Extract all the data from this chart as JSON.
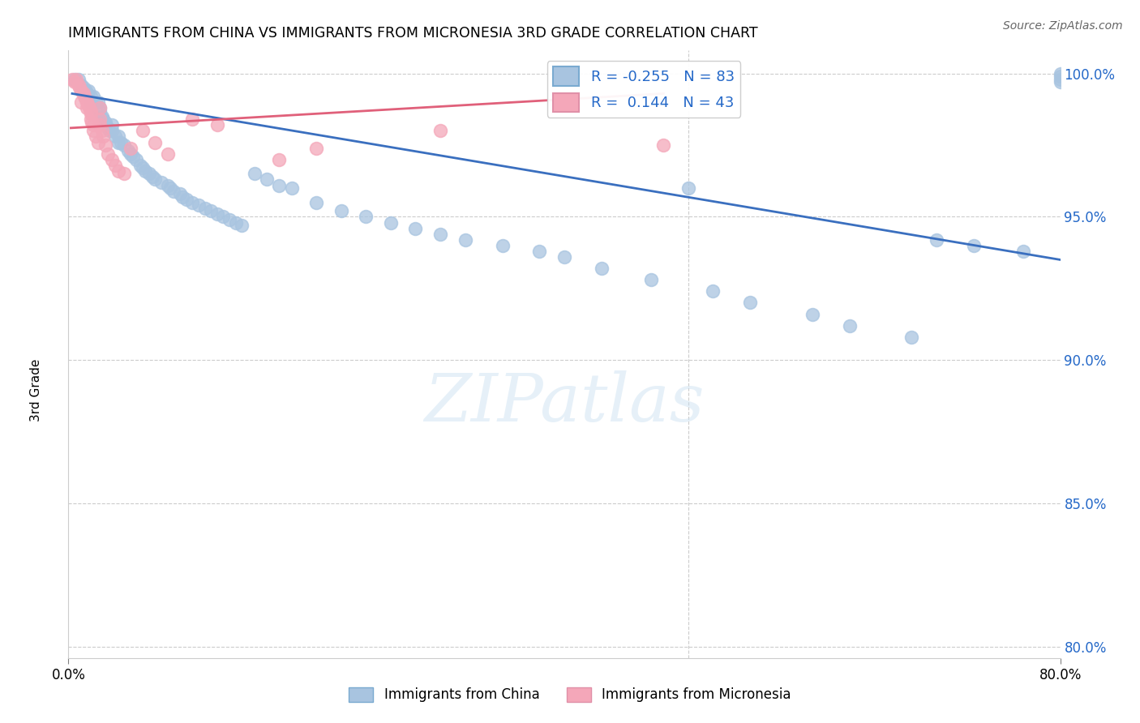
{
  "title": "IMMIGRANTS FROM CHINA VS IMMIGRANTS FROM MICRONESIA 3RD GRADE CORRELATION CHART",
  "source": "Source: ZipAtlas.com",
  "ylabel": "3rd Grade",
  "xlim": [
    0.0,
    0.8
  ],
  "ylim": [
    0.796,
    1.008
  ],
  "yticks": [
    0.8,
    0.85,
    0.9,
    0.95,
    1.0
  ],
  "ytick_labels": [
    "80.0%",
    "85.0%",
    "90.0%",
    "95.0%",
    "100.0%"
  ],
  "china_R": -0.255,
  "china_N": 83,
  "micronesia_R": 0.144,
  "micronesia_N": 43,
  "china_color": "#a8c4e0",
  "micronesia_color": "#f4a7b9",
  "china_line_color": "#3a6fbf",
  "micronesia_line_color": "#e0607a",
  "watermark": "ZIPatlas",
  "china_x": [
    0.005,
    0.008,
    0.01,
    0.012,
    0.014,
    0.015,
    0.016,
    0.018,
    0.018,
    0.02,
    0.02,
    0.022,
    0.024,
    0.025,
    0.025,
    0.027,
    0.028,
    0.03,
    0.03,
    0.032,
    0.033,
    0.035,
    0.035,
    0.038,
    0.04,
    0.04,
    0.042,
    0.045,
    0.048,
    0.05,
    0.052,
    0.055,
    0.058,
    0.06,
    0.062,
    0.065,
    0.068,
    0.07,
    0.075,
    0.08,
    0.082,
    0.085,
    0.09,
    0.092,
    0.095,
    0.1,
    0.105,
    0.11,
    0.115,
    0.12,
    0.125,
    0.13,
    0.135,
    0.14,
    0.15,
    0.16,
    0.17,
    0.18,
    0.2,
    0.22,
    0.24,
    0.26,
    0.28,
    0.3,
    0.32,
    0.35,
    0.38,
    0.4,
    0.43,
    0.47,
    0.5,
    0.52,
    0.55,
    0.6,
    0.63,
    0.68,
    0.7,
    0.73,
    0.77,
    0.8,
    0.8,
    0.8,
    0.8
  ],
  "china_y": [
    0.998,
    0.998,
    0.996,
    0.995,
    0.994,
    0.993,
    0.994,
    0.992,
    0.99,
    0.99,
    0.992,
    0.99,
    0.99,
    0.988,
    0.987,
    0.985,
    0.984,
    0.983,
    0.982,
    0.981,
    0.98,
    0.98,
    0.982,
    0.978,
    0.978,
    0.976,
    0.976,
    0.975,
    0.973,
    0.972,
    0.971,
    0.97,
    0.968,
    0.967,
    0.966,
    0.965,
    0.964,
    0.963,
    0.962,
    0.961,
    0.96,
    0.959,
    0.958,
    0.957,
    0.956,
    0.955,
    0.954,
    0.953,
    0.952,
    0.951,
    0.95,
    0.949,
    0.948,
    0.947,
    0.965,
    0.963,
    0.961,
    0.96,
    0.955,
    0.952,
    0.95,
    0.948,
    0.946,
    0.944,
    0.942,
    0.94,
    0.938,
    0.936,
    0.932,
    0.928,
    0.96,
    0.924,
    0.92,
    0.916,
    0.912,
    0.908,
    0.942,
    0.94,
    0.938,
    1.0,
    0.999,
    0.998,
    0.997
  ],
  "micronesia_x": [
    0.003,
    0.005,
    0.006,
    0.008,
    0.009,
    0.01,
    0.01,
    0.012,
    0.013,
    0.014,
    0.015,
    0.015,
    0.016,
    0.017,
    0.018,
    0.018,
    0.018,
    0.019,
    0.02,
    0.02,
    0.022,
    0.024,
    0.025,
    0.025,
    0.025,
    0.027,
    0.028,
    0.03,
    0.032,
    0.035,
    0.038,
    0.04,
    0.045,
    0.05,
    0.06,
    0.07,
    0.08,
    0.1,
    0.12,
    0.17,
    0.2,
    0.3,
    0.48
  ],
  "micronesia_y": [
    0.998,
    0.997,
    0.998,
    0.996,
    0.995,
    0.994,
    0.99,
    0.993,
    0.992,
    0.991,
    0.99,
    0.988,
    0.989,
    0.988,
    0.987,
    0.986,
    0.984,
    0.983,
    0.982,
    0.98,
    0.978,
    0.976,
    0.988,
    0.984,
    0.982,
    0.98,
    0.978,
    0.975,
    0.972,
    0.97,
    0.968,
    0.966,
    0.965,
    0.974,
    0.98,
    0.976,
    0.972,
    0.984,
    0.982,
    0.97,
    0.974,
    0.98,
    0.975
  ],
  "china_trendline_x": [
    0.003,
    0.8
  ],
  "china_trendline_y": [
    0.993,
    0.935
  ],
  "micronesia_trendline_x": [
    0.002,
    0.48
  ],
  "micronesia_trendline_y": [
    0.981,
    0.993
  ]
}
